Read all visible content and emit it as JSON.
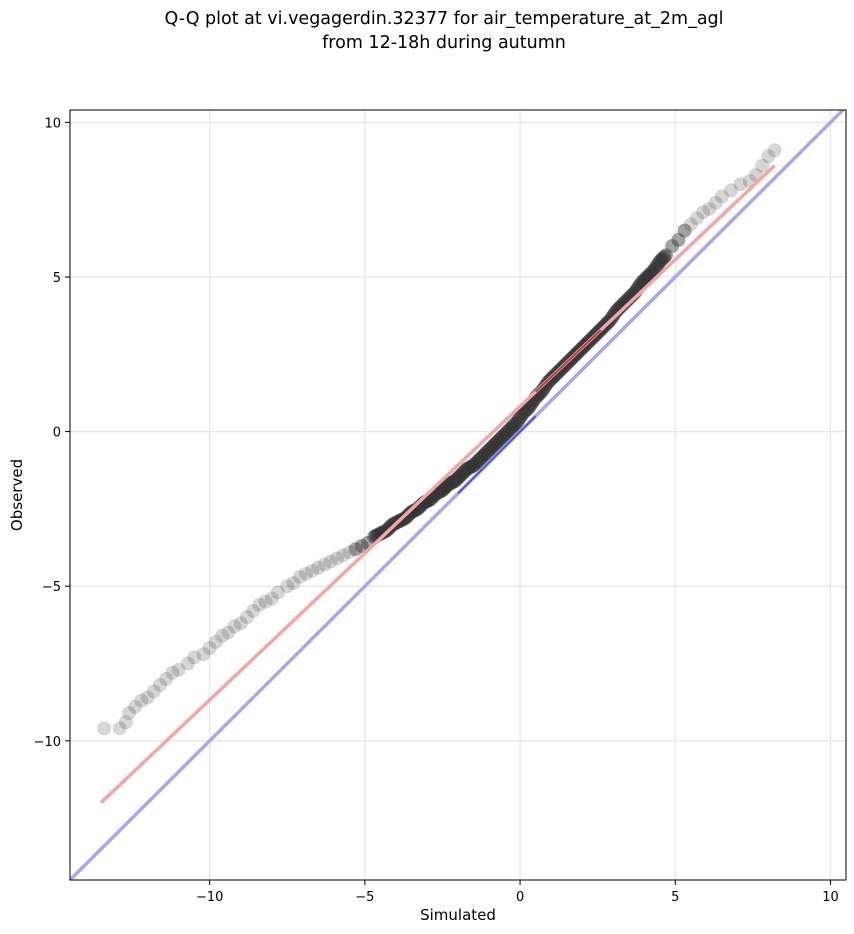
{
  "chart_data": {
    "type": "scatter",
    "title_line1": "Q-Q plot at vi.vegagerdin.32377 for air_temperature_at_2m_agl",
    "title_line2": "from 12-18h during autumn",
    "xlabel": "Simulated",
    "ylabel": "Observed",
    "xlim": [
      -14.5,
      10.5
    ],
    "ylim": [
      -14.5,
      10.4
    ],
    "xticks": [
      -10,
      -5,
      0,
      5,
      10
    ],
    "yticks": [
      -10,
      -5,
      0,
      5,
      10
    ],
    "xtick_labels": [
      "−10",
      "−5",
      "0",
      "5",
      "10"
    ],
    "ytick_labels": [
      "−10",
      "−5",
      "0",
      "5",
      "10"
    ],
    "grid": true,
    "colors": {
      "points": "#333333",
      "fit_line": "#f4a6a6",
      "fit_line_center": "#8b1a1a",
      "identity_line": "#a8a8f0",
      "identity_line_center": "#2020c0"
    },
    "identity_line": {
      "x": [
        -14.5,
        10.5
      ],
      "y": [
        -14.5,
        10.5
      ]
    },
    "fit_line": {
      "x": [
        -13.5,
        8.2
      ],
      "y": [
        -12.0,
        8.6
      ]
    },
    "qq_points": {
      "x": [
        -13.4,
        -12.9,
        -12.7,
        -12.6,
        -12.4,
        -12.2,
        -12.0,
        -11.8,
        -11.6,
        -11.4,
        -11.2,
        -11.0,
        -10.7,
        -10.5,
        -10.2,
        -10.0,
        -9.8,
        -9.6,
        -9.4,
        -9.2,
        -9.0,
        -8.8,
        -8.6,
        -8.4,
        -8.2,
        -8.0,
        -7.8,
        -7.5,
        -7.3,
        -7.1,
        -6.9,
        -6.7,
        -6.5,
        -6.3,
        -6.1,
        -5.9,
        -5.7,
        -5.5,
        -5.3,
        -5.1,
        -4.9,
        -4.7,
        -4.5,
        -4.3,
        -4.1,
        -3.9,
        -3.7,
        -3.5,
        -3.3,
        -3.1,
        -2.9,
        -2.7,
        -2.5,
        -2.3,
        -2.1,
        -1.9,
        -1.7,
        -1.5,
        -1.3,
        -1.1,
        -0.9,
        -0.7,
        -0.5,
        -0.3,
        -0.1,
        0.1,
        0.3,
        0.5,
        0.7,
        0.9,
        1.1,
        1.3,
        1.5,
        1.7,
        1.9,
        2.1,
        2.3,
        2.5,
        2.7,
        2.9,
        3.1,
        3.3,
        3.5,
        3.7,
        3.9,
        4.1,
        4.3,
        4.5,
        4.7,
        4.9,
        5.1,
        5.3,
        5.5,
        5.7,
        5.9,
        6.1,
        6.3,
        6.5,
        6.8,
        7.1,
        7.4,
        7.6,
        7.8,
        8.0,
        8.2
      ],
      "y": [
        -9.6,
        -9.6,
        -9.4,
        -9.1,
        -8.9,
        -8.7,
        -8.6,
        -8.4,
        -8.2,
        -8.0,
        -7.8,
        -7.7,
        -7.5,
        -7.3,
        -7.2,
        -7.0,
        -6.8,
        -6.6,
        -6.5,
        -6.3,
        -6.2,
        -6.0,
        -5.8,
        -5.6,
        -5.5,
        -5.4,
        -5.2,
        -5.0,
        -4.9,
        -4.7,
        -4.6,
        -4.5,
        -4.4,
        -4.3,
        -4.2,
        -4.1,
        -4.0,
        -3.9,
        -3.8,
        -3.7,
        -3.6,
        -3.4,
        -3.3,
        -3.2,
        -3.0,
        -2.9,
        -2.8,
        -2.6,
        -2.5,
        -2.3,
        -2.2,
        -2.0,
        -1.9,
        -1.7,
        -1.6,
        -1.4,
        -1.2,
        -1.1,
        -0.9,
        -0.7,
        -0.5,
        -0.3,
        -0.1,
        0.1,
        0.3,
        0.6,
        0.8,
        1.1,
        1.3,
        1.6,
        1.8,
        2.0,
        2.2,
        2.4,
        2.6,
        2.8,
        3.0,
        3.2,
        3.4,
        3.6,
        3.9,
        4.1,
        4.3,
        4.5,
        4.8,
        5.0,
        5.2,
        5.5,
        5.7,
        6.0,
        6.2,
        6.5,
        6.7,
        6.9,
        7.1,
        7.2,
        7.4,
        7.6,
        7.8,
        8.0,
        8.1,
        8.3,
        8.6,
        8.9,
        9.1
      ]
    }
  }
}
